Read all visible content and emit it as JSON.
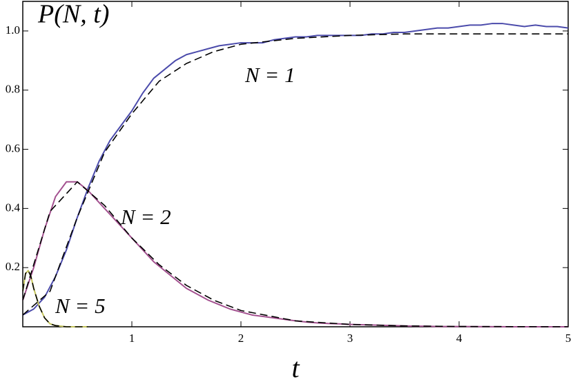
{
  "chart_data": {
    "type": "line",
    "title": "P(N, t)",
    "x_label": "t",
    "xlim": [
      0,
      5
    ],
    "ylim": [
      0,
      1.1
    ],
    "xticks": [
      1,
      2,
      3,
      4,
      5
    ],
    "yticks": [
      0.2,
      0.4,
      0.6,
      0.8,
      {
        "value": 1,
        "label": "1.0"
      }
    ],
    "series": [
      {
        "name": "N = 1",
        "color": "#4b4bab",
        "x": [
          0,
          0.1,
          0.2,
          0.3,
          0.4,
          0.5,
          0.6,
          0.7,
          0.8,
          0.9,
          1,
          1.1,
          1.2,
          1.3,
          1.4,
          1.5,
          1.6,
          1.7,
          1.8,
          1.9,
          2,
          2.1,
          2.2,
          2.3,
          2.4,
          2.5,
          2.6,
          2.7,
          2.8,
          2.9,
          3,
          3.1,
          3.2,
          3.3,
          3.4,
          3.5,
          3.6,
          3.7,
          3.8,
          3.9,
          4,
          4.1,
          4.2,
          4.3,
          4.4,
          4.5,
          4.6,
          4.7,
          4.8,
          4.9,
          5
        ],
        "values": [
          0.04,
          0.06,
          0.1,
          0.17,
          0.26,
          0.37,
          0.47,
          0.56,
          0.63,
          0.68,
          0.73,
          0.79,
          0.84,
          0.87,
          0.9,
          0.92,
          0.93,
          0.94,
          0.95,
          0.955,
          0.96,
          0.96,
          0.96,
          0.97,
          0.975,
          0.98,
          0.98,
          0.985,
          0.985,
          0.985,
          0.985,
          0.985,
          0.99,
          0.99,
          0.995,
          0.995,
          1,
          1.005,
          1.01,
          1.01,
          1.015,
          1.02,
          1.02,
          1.025,
          1.025,
          1.02,
          1.015,
          1.02,
          1.015,
          1.015,
          1.01
        ]
      },
      {
        "name": "N = 2",
        "color": "#a3508f",
        "x": [
          0,
          0.1,
          0.2,
          0.3,
          0.4,
          0.5,
          0.6,
          0.7,
          0.8,
          0.9,
          1,
          1.1,
          1.2,
          1.3,
          1.4,
          1.5,
          1.6,
          1.7,
          1.8,
          1.9,
          2,
          2.1,
          2.2,
          2.3,
          2.4,
          2.5,
          2.6,
          2.7,
          2.8,
          2.9,
          3,
          3.1,
          3.2,
          3.3,
          3.4,
          3.5,
          3.6,
          3.7,
          3.8,
          3.9,
          4,
          4.5,
          5
        ],
        "values": [
          0.09,
          0.2,
          0.33,
          0.44,
          0.49,
          0.49,
          0.46,
          0.42,
          0.38,
          0.34,
          0.3,
          0.26,
          0.22,
          0.19,
          0.16,
          0.13,
          0.11,
          0.09,
          0.075,
          0.06,
          0.05,
          0.04,
          0.035,
          0.03,
          0.025,
          0.02,
          0.016,
          0.013,
          0.011,
          0.01,
          0.008,
          0.007,
          0.006,
          0.005,
          0.004,
          0.003,
          0.002,
          0.002,
          0.001,
          0.001,
          0.001,
          0,
          0
        ]
      },
      {
        "name": "N = 5",
        "color": "#c4c45a",
        "x": [
          0,
          0.025,
          0.05,
          0.075,
          0.1,
          0.15,
          0.2,
          0.25,
          0.3,
          0.4,
          0.6
        ],
        "values": [
          0.12,
          0.18,
          0.19,
          0.17,
          0.13,
          0.07,
          0.03,
          0.01,
          0.004,
          0,
          0
        ]
      },
      {
        "color": "#000000",
        "dashed": true,
        "x": [
          0,
          0.25,
          0.5,
          0.75,
          1,
          1.25,
          1.5,
          1.75,
          2,
          2.5,
          3,
          3.5,
          4,
          5
        ],
        "values": [
          0.04,
          0.12,
          0.37,
          0.59,
          0.72,
          0.83,
          0.89,
          0.93,
          0.955,
          0.975,
          0.985,
          0.99,
          0.99,
          0.99
        ]
      },
      {
        "color": "#000000",
        "dashed": true,
        "x": [
          0,
          0.25,
          0.5,
          0.75,
          1,
          1.25,
          1.5,
          1.75,
          2,
          2.5,
          3,
          3.5,
          4,
          5
        ],
        "values": [
          0.09,
          0.39,
          0.49,
          0.41,
          0.3,
          0.21,
          0.14,
          0.09,
          0.055,
          0.02,
          0.008,
          0.003,
          0.001,
          0
        ]
      },
      {
        "color": "#000000",
        "dashed": true,
        "x": [
          0,
          0.025,
          0.05,
          0.075,
          0.1,
          0.15,
          0.2,
          0.25,
          0.3,
          0.4,
          0.6
        ],
        "values": [
          0.12,
          0.18,
          0.19,
          0.17,
          0.13,
          0.07,
          0.03,
          0.01,
          0.004,
          0,
          0
        ]
      }
    ]
  }
}
